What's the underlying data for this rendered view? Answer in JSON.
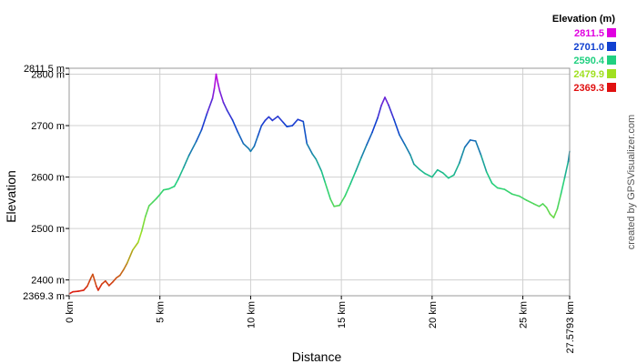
{
  "chart_data": {
    "type": "line",
    "title": "",
    "xlabel": "Distance",
    "ylabel": "Elevation",
    "x_unit": "km",
    "y_unit": "m",
    "xlim": [
      0,
      27.5793
    ],
    "ylim": [
      2369.3,
      2811.5
    ],
    "grid": true,
    "x_ticks": [
      "0 km",
      "5 km",
      "10 km",
      "15 km",
      "20 km",
      "25 km",
      "27.5793 km"
    ],
    "y_ticks": [
      "2369.3 m",
      "2400 m",
      "2500 m",
      "2600 m",
      "2700 m",
      "2800 m",
      "2811.5 m"
    ],
    "legend": {
      "title": "Elevation (m)",
      "placement": "top-right",
      "entries": [
        {
          "label": "2811.5",
          "color": "#e000e0"
        },
        {
          "label": "2701.0",
          "color": "#1040d0"
        },
        {
          "label": "2590.4",
          "color": "#20d080"
        },
        {
          "label": "2479.9",
          "color": "#a0e020"
        },
        {
          "label": "2369.3",
          "color": "#e01010"
        }
      ]
    },
    "series": [
      {
        "x": [
          0.0,
          0.2,
          0.5,
          0.8,
          1.0,
          1.2,
          1.3,
          1.5,
          1.6,
          1.8,
          2.0,
          2.2,
          2.4,
          2.6,
          2.8,
          3.0,
          3.2,
          3.5,
          3.8,
          4.0,
          4.2,
          4.4,
          4.6,
          4.8,
          5.0,
          5.2,
          5.5,
          5.8,
          6.0,
          6.3,
          6.6,
          7.0,
          7.3,
          7.6,
          7.9,
          8.0,
          8.1,
          8.2,
          8.3,
          8.5,
          8.7,
          9.0,
          9.3,
          9.6,
          9.9,
          10.0,
          10.2,
          10.4,
          10.6,
          10.8,
          11.0,
          11.2,
          11.5,
          11.8,
          12.0,
          12.3,
          12.6,
          12.9,
          13.1,
          13.4,
          13.6,
          13.9,
          14.1,
          14.4,
          14.6,
          14.9,
          15.2,
          15.5,
          15.8,
          16.1,
          16.4,
          16.7,
          17.0,
          17.2,
          17.4,
          17.6,
          17.9,
          18.2,
          18.5,
          18.8,
          19.0,
          19.3,
          19.6,
          20.0,
          20.3,
          20.6,
          20.9,
          21.2,
          21.5,
          21.8,
          22.1,
          22.4,
          22.7,
          23.0,
          23.3,
          23.6,
          24.0,
          24.4,
          24.8,
          25.2,
          25.6,
          25.9,
          26.1,
          26.3,
          26.5,
          26.7,
          26.9,
          27.1,
          27.3,
          27.5,
          27.5793
        ],
        "y": [
          2373,
          2377,
          2378,
          2380,
          2388,
          2404,
          2411,
          2388,
          2380,
          2392,
          2398,
          2389,
          2396,
          2404,
          2409,
          2420,
          2433,
          2458,
          2473,
          2495,
          2523,
          2544,
          2551,
          2558,
          2566,
          2575,
          2577,
          2582,
          2595,
          2618,
          2642,
          2669,
          2692,
          2724,
          2753,
          2772,
          2800,
          2782,
          2767,
          2745,
          2730,
          2711,
          2687,
          2665,
          2655,
          2650,
          2660,
          2680,
          2700,
          2710,
          2717,
          2710,
          2718,
          2706,
          2698,
          2700,
          2712,
          2708,
          2665,
          2645,
          2635,
          2612,
          2590,
          2557,
          2543,
          2545,
          2563,
          2587,
          2612,
          2638,
          2663,
          2687,
          2715,
          2739,
          2755,
          2740,
          2712,
          2682,
          2663,
          2643,
          2625,
          2615,
          2607,
          2600,
          2614,
          2608,
          2598,
          2604,
          2627,
          2658,
          2672,
          2670,
          2642,
          2610,
          2588,
          2579,
          2576,
          2567,
          2563,
          2555,
          2548,
          2543,
          2548,
          2541,
          2528,
          2521,
          2538,
          2567,
          2598,
          2630,
          2650
        ]
      }
    ]
  },
  "credit": "created by GPSVisualizer.com"
}
